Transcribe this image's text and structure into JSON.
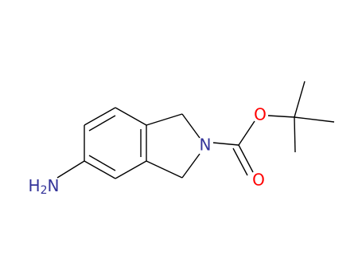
{
  "atoms": {
    "amine": {
      "h": "H",
      "count": "2",
      "n": "N"
    },
    "ring_n": "N",
    "ester_o": "O",
    "carbonyl_o": "O"
  }
}
